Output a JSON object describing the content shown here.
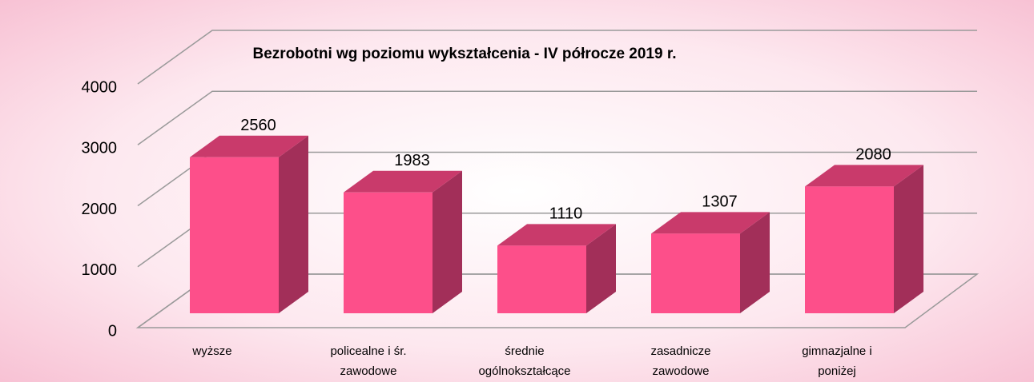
{
  "chart_data": {
    "type": "bar3d",
    "title": "Bezrobotni wg poziomu wykształcenia - IV półrocze 2019 r.",
    "categories": [
      [
        "wyższe"
      ],
      [
        "policealne i śr.",
        "zawodowe"
      ],
      [
        "średnie",
        "ogólnokształcące"
      ],
      [
        "zasadnicze",
        "zawodowe"
      ],
      [
        "gimnazjalne i",
        "poniżej"
      ]
    ],
    "values": [
      2560,
      1983,
      1110,
      1307,
      2080
    ],
    "colors": {
      "front": "#fd4f8a",
      "top": "#c93a6b",
      "side": "#a22f59"
    },
    "ylim": [
      0,
      4000
    ],
    "yticks": [
      0,
      1000,
      2000,
      3000,
      4000
    ],
    "grid": true
  }
}
